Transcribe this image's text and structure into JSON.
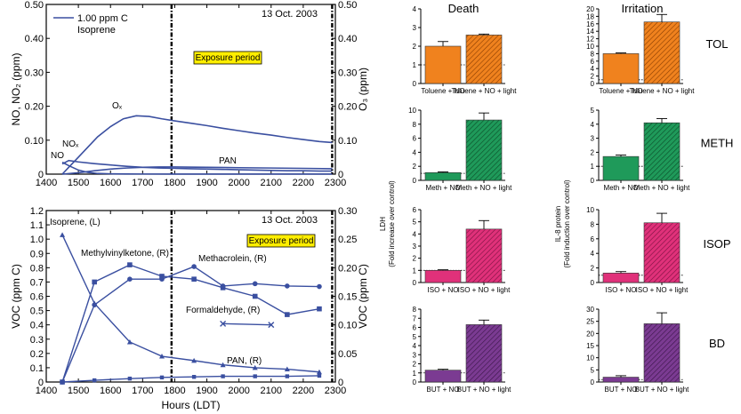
{
  "colors": {
    "line": "#3a4fa0",
    "tol": "#f0821e",
    "meth": "#1f9a5a",
    "isop": "#e0317a",
    "bd": "#7b3b92",
    "exposure_box": "#ffee00"
  },
  "chart_data": [
    {
      "type": "line",
      "date_label": "13 Oct. 2003",
      "ylabel_left": "NO, NO₂ (ppm)",
      "ylabel_right": "O₃ (ppm)",
      "xlim": [
        1400,
        2300
      ],
      "ylim_left": [
        0,
        0.5
      ],
      "ylim_right": [
        0,
        0.5
      ],
      "x_ticks": [
        "1400",
        "1500",
        "1600",
        "1700",
        "1800",
        "1900",
        "2000",
        "2100",
        "2200",
        "2300"
      ],
      "y_ticks_left": [
        "0",
        "0.10",
        "0.20",
        "0.30",
        "0.40",
        "0.50"
      ],
      "y_ticks_right": [
        "0",
        "0.10",
        "0.20",
        "0.30",
        "0.40",
        "0.50"
      ],
      "legend_label": "1.00 ppm C",
      "legend_sub": "Isoprene",
      "exposure_label": "Exposure period",
      "exposure_start": 1790,
      "exposure_end": 2290,
      "series": [
        {
          "name": "Oₓ",
          "x": [
            1450,
            1470,
            1500,
            1530,
            1560,
            1600,
            1640,
            1680,
            1720,
            1760,
            1800,
            1850,
            1900,
            1950,
            2000,
            2050,
            2100,
            2150,
            2200,
            2250,
            2290
          ],
          "y": [
            0,
            0.02,
            0.05,
            0.08,
            0.11,
            0.14,
            0.163,
            0.172,
            0.17,
            0.163,
            0.157,
            0.15,
            0.143,
            0.135,
            0.128,
            0.121,
            0.115,
            0.108,
            0.102,
            0.096,
            0.093
          ]
        },
        {
          "name": "NOₓ",
          "x": [
            1450,
            1470,
            1500,
            1550,
            1600,
            1650,
            1700,
            1750,
            1800,
            1850,
            1900,
            1950,
            2000,
            2050,
            2100,
            2150,
            2200,
            2250,
            2290
          ],
          "y": [
            0.03,
            0.04,
            0.036,
            0.031,
            0.027,
            0.023,
            0.02,
            0.018,
            0.017,
            0.016,
            0.015,
            0.014,
            0.013,
            0.012,
            0.011,
            0.01,
            0.01,
            0.009,
            0.009
          ]
        },
        {
          "name": "NO",
          "x": [
            1450,
            1470,
            1500,
            1530,
            1560,
            1600,
            1650,
            1700,
            1800,
            1900,
            2000,
            2100,
            2200,
            2290
          ],
          "y": [
            0.035,
            0.025,
            0.012,
            0.005,
            0.002,
            0.001,
            0.0005,
            0.0003,
            0.0002,
            0.0002,
            0.0002,
            0.0002,
            0.0002,
            0.0002
          ]
        },
        {
          "name": "PAN",
          "x": [
            1450,
            1500,
            1550,
            1600,
            1650,
            1700,
            1750,
            1800,
            1900,
            2000,
            2100,
            2200,
            2290
          ],
          "y": [
            0,
            0.004,
            0.01,
            0.015,
            0.018,
            0.02,
            0.021,
            0.021,
            0.02,
            0.019,
            0.018,
            0.017,
            0.016
          ]
        }
      ],
      "annotations": [
        "Oₓ",
        "NOₓ",
        "NO",
        "PAN"
      ]
    },
    {
      "type": "line",
      "date_label": "13 Oct. 2003",
      "xlabel": "Hours (LDT)",
      "ylabel_left": "VOC (ppm C)",
      "ylabel_right": "VOC (ppm C)",
      "xlim": [
        1400,
        2300
      ],
      "ylim_left": [
        0,
        1.2
      ],
      "ylim_right": [
        0,
        0.3
      ],
      "x_ticks": [
        "1400",
        "1500",
        "1600",
        "1700",
        "1800",
        "1900",
        "2000",
        "2100",
        "2200",
        "2300"
      ],
      "y_ticks_left": [
        "0",
        "0.1",
        "0.2",
        "0.3",
        "0.4",
        "0.5",
        "0.6",
        "0.7",
        "0.8",
        "0.9",
        "1.0",
        "1.1",
        "1.2"
      ],
      "y_ticks_right": [
        "0",
        "0.05",
        "0.10",
        "0.15",
        "0.20",
        "0.25",
        "0.30"
      ],
      "exposure_label": "Exposure period",
      "exposure_start": 1790,
      "exposure_end": 2290,
      "series": [
        {
          "name": "Isoprene, (L)",
          "axis": "left",
          "marker": "triangle",
          "x": [
            1450,
            1550,
            1660,
            1760,
            1860,
            1950,
            2050,
            2150,
            2250
          ],
          "y": [
            1.03,
            0.55,
            0.28,
            0.18,
            0.15,
            0.12,
            0.1,
            0.09,
            0.07
          ]
        },
        {
          "name": "Methylvinylketone, (R)",
          "axis": "right",
          "marker": "square",
          "x": [
            1450,
            1550,
            1660,
            1760,
            1860,
            1950,
            2050,
            2150,
            2250
          ],
          "y": [
            0,
            0.175,
            0.205,
            0.185,
            0.18,
            0.165,
            0.15,
            0.118,
            0.128
          ]
        },
        {
          "name": "Methacrolein, (R)",
          "axis": "right",
          "marker": "circle",
          "x": [
            1450,
            1550,
            1660,
            1760,
            1860,
            1950,
            2050,
            2150,
            2250
          ],
          "y": [
            0,
            0.135,
            0.18,
            0.18,
            0.202,
            0.168,
            0.172,
            0.168,
            0.167
          ]
        },
        {
          "name": "Formaldehyde, (R)",
          "axis": "right",
          "marker": "x",
          "x": [
            1950,
            2100
          ],
          "y": [
            0.102,
            0.1
          ]
        },
        {
          "name": "PAN, (R)",
          "axis": "right",
          "marker": "square-small",
          "x": [
            1450,
            1550,
            1660,
            1760,
            1860,
            1950,
            2050,
            2150,
            2250
          ],
          "y": [
            0,
            0.003,
            0.006,
            0.008,
            0.009,
            0.01,
            0.01,
            0.01,
            0.011
          ]
        }
      ]
    },
    {
      "type": "bar",
      "panel_grid": "4x2",
      "column_titles": [
        "Death",
        "Irritation"
      ],
      "ylabel_left": "LDH",
      "ylabel_left_sub": "(Fold increase over control)",
      "ylabel_right": "IL-8 protein",
      "ylabel_right_sub": "(Fold induction over control)",
      "rows": [
        {
          "compound": "TOL",
          "color": "tol",
          "death": {
            "categories": [
              "Toluene + NO",
              "Toluene + NO + light"
            ],
            "values": [
              2.0,
              2.6
            ],
            "errors": [
              0.25,
              0.05
            ],
            "ylim": [
              0,
              4
            ],
            "ticks": [
              "0",
              "1",
              "2",
              "3",
              "4"
            ]
          },
          "irritation": {
            "categories": [
              "Toluene + NO",
              "Toluene + NO + light"
            ],
            "values": [
              8.0,
              16.5
            ],
            "errors": [
              0.2,
              2.0
            ],
            "ylim": [
              0,
              20
            ],
            "ticks": [
              "0",
              "2",
              "4",
              "6",
              "8",
              "10",
              "12",
              "14",
              "16",
              "18",
              "20"
            ]
          }
        },
        {
          "compound": "METH",
          "color": "meth",
          "death": {
            "categories": [
              "Meth + NO",
              "Meth + NO + light"
            ],
            "values": [
              1.1,
              8.6
            ],
            "errors": [
              0.1,
              1.0
            ],
            "ylim": [
              0,
              10
            ],
            "ticks": [
              "0",
              "2",
              "4",
              "6",
              "8",
              "10"
            ]
          },
          "irritation": {
            "categories": [
              "Meth + NO",
              "Meth + NO + light"
            ],
            "values": [
              1.7,
              4.1
            ],
            "errors": [
              0.1,
              0.3
            ],
            "ylim": [
              0,
              5
            ],
            "ticks": [
              "0",
              "1",
              "2",
              "3",
              "4",
              "5"
            ]
          }
        },
        {
          "compound": "ISOP",
          "color": "isop",
          "death": {
            "categories": [
              "ISO + NO",
              "ISO + NO + light"
            ],
            "values": [
              1.0,
              4.4
            ],
            "errors": [
              0.05,
              0.7
            ],
            "ylim": [
              0,
              6
            ],
            "ticks": [
              "0",
              "1",
              "2",
              "3",
              "4",
              "5",
              "6"
            ]
          },
          "irritation": {
            "categories": [
              "ISO + NO",
              "ISO + NO + light"
            ],
            "values": [
              1.3,
              8.2
            ],
            "errors": [
              0.2,
              1.3
            ],
            "ylim": [
              0,
              10
            ],
            "ticks": [
              "0",
              "2",
              "4",
              "6",
              "8",
              "10"
            ]
          }
        },
        {
          "compound": "BD",
          "color": "bd",
          "death": {
            "categories": [
              "BUT + NO",
              "BUT + NO + light"
            ],
            "values": [
              1.3,
              6.3
            ],
            "errors": [
              0.1,
              0.5
            ],
            "ylim": [
              0,
              8
            ],
            "ticks": [
              "0",
              "1",
              "2",
              "3",
              "4",
              "5",
              "6",
              "7",
              "8"
            ]
          },
          "irritation": {
            "categories": [
              "BUT + NO",
              "BUT + NO + light"
            ],
            "values": [
              2.0,
              24.0
            ],
            "errors": [
              0.6,
              4.5
            ],
            "ylim": [
              0,
              30
            ],
            "ticks": [
              "0",
              "5",
              "10",
              "15",
              "20",
              "25",
              "30"
            ]
          }
        }
      ]
    }
  ]
}
